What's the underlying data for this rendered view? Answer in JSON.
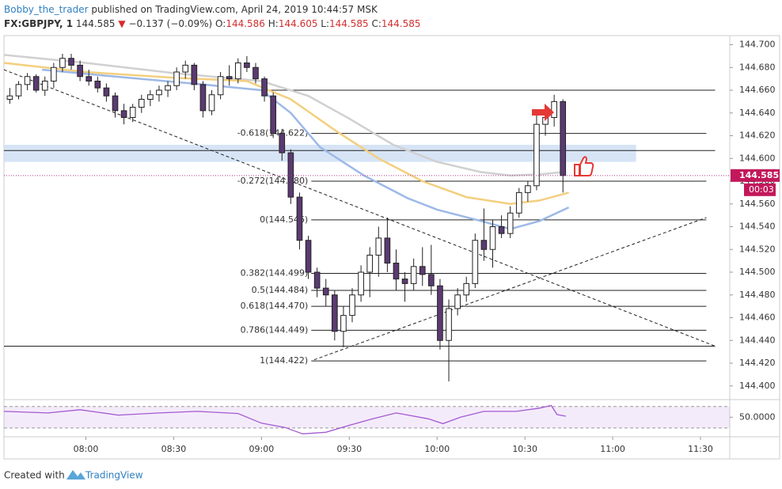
{
  "chart_data": {
    "type": "candlestick",
    "author": "Bobby_the_trader",
    "published": "published on TradingView.com, April 24, 2019 10:44:57 MSK",
    "symbol": "FX:GBPJPY, 1",
    "last": "144.585",
    "arrow": "▼",
    "change": "−0.137 (−0.09%)",
    "ohlc": [
      {
        "key": "O:",
        "value": "144.586"
      },
      {
        "key": "H:",
        "value": "144.605"
      },
      {
        "key": "L:",
        "value": "144.585"
      },
      {
        "key": "C:",
        "value": "144.585"
      }
    ],
    "x": [
      454,
      457,
      460,
      463,
      466,
      469,
      472,
      475,
      478,
      481,
      484,
      487,
      490,
      493,
      496,
      499,
      502,
      505,
      508,
      511,
      514,
      517,
      520,
      523,
      526,
      529,
      532,
      535,
      538,
      541,
      544,
      547,
      550,
      553,
      556,
      559,
      562,
      565,
      568,
      571,
      574,
      577,
      580,
      583,
      586,
      589,
      592,
      595,
      598,
      601,
      604,
      607,
      610,
      613,
      616,
      619,
      622,
      625,
      628,
      631,
      634,
      637,
      640,
      643
    ],
    "open": [
      144.652,
      144.655,
      144.665,
      144.672,
      144.66,
      144.668,
      144.68,
      144.688,
      144.682,
      144.672,
      144.668,
      144.662,
      144.655,
      144.642,
      144.636,
      144.645,
      144.652,
      144.656,
      144.66,
      144.664,
      144.676,
      144.682,
      144.665,
      144.642,
      144.656,
      144.672,
      144.67,
      144.684,
      144.68,
      144.67,
      144.655,
      144.622,
      144.605,
      144.566,
      144.528,
      144.5,
      144.486,
      144.48,
      144.448,
      144.462,
      144.48,
      144.5,
      144.515,
      144.53,
      144.508,
      144.494,
      144.49,
      144.505,
      144.498,
      144.488,
      144.44,
      144.468,
      144.48,
      144.49,
      144.528,
      144.52,
      144.54,
      144.534,
      144.552,
      144.57,
      144.576,
      144.63,
      144.636,
      144.65
    ],
    "high": [
      144.662,
      144.668,
      144.675,
      144.674,
      144.672,
      144.684,
      144.692,
      144.692,
      144.686,
      144.678,
      144.672,
      144.666,
      144.658,
      144.648,
      144.648,
      144.656,
      144.66,
      144.664,
      144.668,
      144.68,
      144.686,
      144.684,
      144.668,
      144.66,
      144.676,
      144.682,
      144.688,
      144.69,
      144.684,
      144.672,
      144.658,
      144.626,
      144.608,
      144.57,
      144.532,
      144.504,
      144.494,
      144.484,
      144.47,
      144.486,
      144.506,
      144.522,
      144.54,
      144.548,
      144.52,
      144.5,
      144.512,
      144.522,
      144.524,
      144.494,
      144.476,
      144.486,
      144.496,
      144.534,
      144.556,
      144.546,
      144.55,
      144.558,
      144.574,
      144.58,
      144.64,
      144.645,
      144.656,
      144.652
    ],
    "low": [
      144.648,
      144.652,
      144.66,
      144.658,
      144.655,
      144.662,
      144.676,
      144.678,
      144.668,
      144.664,
      144.658,
      144.65,
      144.636,
      144.63,
      144.632,
      144.64,
      144.646,
      144.65,
      144.654,
      144.66,
      144.67,
      144.66,
      144.636,
      144.638,
      144.652,
      144.664,
      144.666,
      144.676,
      144.666,
      144.65,
      144.618,
      144.598,
      144.56,
      144.52,
      144.494,
      144.478,
      144.47,
      144.44,
      144.434,
      144.456,
      144.474,
      144.478,
      144.496,
      144.5,
      144.484,
      144.474,
      144.484,
      144.488,
      144.48,
      144.432,
      144.404,
      144.462,
      144.474,
      144.486,
      144.51,
      144.504,
      144.53,
      144.53,
      144.548,
      144.562,
      144.572,
      144.62,
      144.628,
      144.57
    ],
    "close": [
      144.655,
      144.665,
      144.672,
      144.66,
      144.668,
      144.68,
      144.688,
      144.682,
      144.672,
      144.668,
      144.662,
      144.655,
      144.642,
      144.636,
      144.645,
      144.652,
      144.656,
      144.66,
      144.664,
      144.676,
      144.682,
      144.665,
      144.642,
      144.656,
      144.672,
      144.67,
      144.684,
      144.68,
      144.67,
      144.655,
      144.622,
      144.605,
      144.566,
      144.528,
      144.5,
      144.486,
      144.48,
      144.448,
      144.462,
      144.48,
      144.5,
      144.515,
      144.53,
      144.508,
      144.494,
      144.49,
      144.505,
      144.498,
      144.488,
      144.44,
      144.468,
      144.48,
      144.49,
      144.528,
      144.52,
      144.54,
      144.534,
      144.552,
      144.57,
      144.576,
      144.63,
      144.636,
      144.65,
      144.585
    ],
    "up_color": "#ffffff",
    "down_color": "#5b3a72",
    "ma": [
      {
        "color": "#d0d0d0",
        "x": [
          452,
          480,
          510,
          540,
          556,
          570,
          585,
          600,
          615,
          625,
          635,
          643
        ],
        "values": [
          144.691,
          144.684,
          144.675,
          144.668,
          144.655,
          144.635,
          144.612,
          144.597,
          144.588,
          144.585,
          144.586,
          144.588
        ]
      },
      {
        "color": "#f3cf7f",
        "x": [
          452,
          480,
          510,
          535,
          550,
          565,
          580,
          595,
          610,
          625,
          635,
          645
        ],
        "values": [
          144.684,
          144.676,
          144.671,
          144.668,
          144.652,
          144.625,
          144.6,
          144.58,
          144.566,
          144.56,
          144.563,
          144.57
        ]
      },
      {
        "color": "#9db9e6",
        "x": [
          465,
          490,
          520,
          540,
          550,
          560,
          575,
          590,
          600,
          615,
          625,
          635,
          645
        ],
        "values": [
          144.678,
          144.672,
          144.665,
          144.66,
          144.64,
          144.61,
          144.585,
          144.565,
          144.555,
          144.545,
          144.538,
          144.545,
          144.557
        ]
      }
    ],
    "zone": {
      "x": [
        452,
        668
      ],
      "values": [
        144.597,
        144.612
      ],
      "color": "#cfdff5"
    },
    "hlines": [
      {
        "x": [
          543,
          695
        ],
        "value": 144.66
      },
      {
        "x": [
          452,
          695
        ],
        "value": 144.607
      },
      {
        "x": [
          452,
          695
        ],
        "value": 144.435
      }
    ],
    "fib": {
      "x": [
        557,
        692
      ],
      "levels": [
        {
          "label": "-0.618(144.622)",
          "value": 144.622
        },
        {
          "label": "-0.272(144.580)",
          "value": 144.58
        },
        {
          "label": "0(144.546)",
          "value": 144.546
        },
        {
          "label": "0.382(144.499)",
          "value": 144.499
        },
        {
          "label": "0.5(144.484)",
          "value": 144.484
        },
        {
          "label": "0.618(144.470)",
          "value": 144.47
        },
        {
          "label": "0.786(144.449)",
          "value": 144.449
        },
        {
          "label": "1(144.422)",
          "value": 144.422
        }
      ]
    },
    "trendlines": [
      {
        "x": [
          452,
          695
        ],
        "values": [
          144.678,
          144.435
        ]
      },
      {
        "x": [
          558,
          692
        ],
        "values": [
          144.423,
          144.548
        ]
      }
    ],
    "last_price": 144.585,
    "timer": "00:03",
    "xlim": [
      452,
      700
    ],
    "ylim": [
      144.388,
      144.708
    ],
    "xticks": [
      {
        "value": 480,
        "label": "08:00"
      },
      {
        "value": 510,
        "label": "08:30"
      },
      {
        "value": 540,
        "label": "09:00"
      },
      {
        "value": 570,
        "label": "09:30"
      },
      {
        "value": 600,
        "label": "10:00"
      },
      {
        "value": 630,
        "label": "10:30"
      },
      {
        "value": 660,
        "label": "11:00"
      },
      {
        "value": 690,
        "label": "11:30"
      }
    ],
    "yticks": [
      {
        "value": 144.4,
        "label": "144.400"
      },
      {
        "value": 144.42,
        "label": "144.420"
      },
      {
        "value": 144.44,
        "label": "144.440"
      },
      {
        "value": 144.46,
        "label": "144.460"
      },
      {
        "value": 144.48,
        "label": "144.480"
      },
      {
        "value": 144.5,
        "label": "144.500"
      },
      {
        "value": 144.52,
        "label": "144.520"
      },
      {
        "value": 144.54,
        "label": "144.540"
      },
      {
        "value": 144.56,
        "label": "144.560"
      },
      {
        "value": 144.58,
        "label": "144.580"
      },
      {
        "value": 144.6,
        "label": "144.600"
      },
      {
        "value": 144.62,
        "label": "144.620"
      },
      {
        "value": 144.64,
        "label": "144.640"
      },
      {
        "value": 144.66,
        "label": "144.660"
      },
      {
        "value": 144.68,
        "label": "144.680"
      },
      {
        "value": 144.7,
        "label": "144.700"
      }
    ],
    "rsi": {
      "color": "#a35ad2",
      "ylim": [
        15,
        80
      ],
      "levels": [
        30,
        70
      ],
      "yticks": [
        {
          "value": 50,
          "label": "50.0000"
        }
      ],
      "x": [
        452,
        467,
        478,
        491,
        505,
        518,
        532,
        540,
        548,
        554,
        562,
        570,
        578,
        586,
        597,
        602,
        608,
        616,
        627,
        635,
        639,
        641,
        644
      ],
      "values": [
        61,
        58,
        64,
        54,
        58,
        61,
        57,
        39,
        31,
        19,
        22,
        35,
        47,
        58,
        47,
        38,
        50,
        61,
        61,
        67,
        72,
        55,
        52
      ]
    },
    "created": "Created with",
    "brand": "TradingView"
  }
}
